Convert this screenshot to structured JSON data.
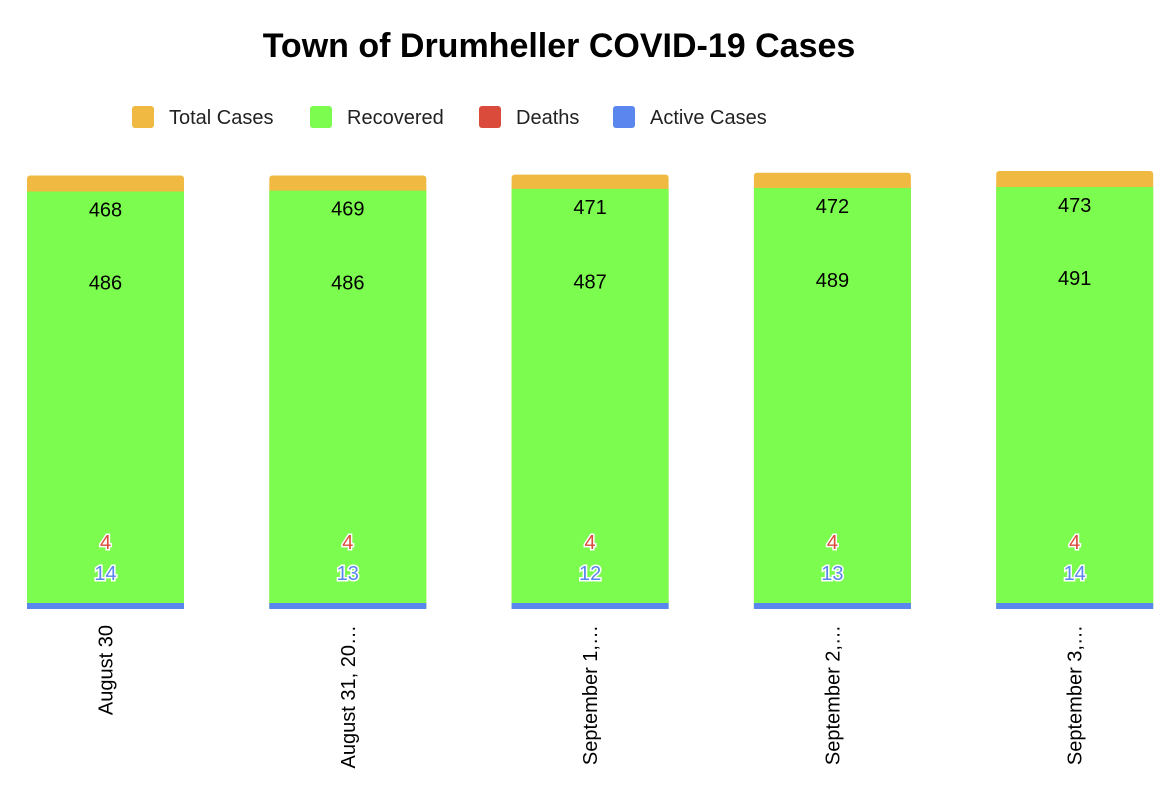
{
  "chart_data": {
    "type": "bar",
    "title": "Town of Drumheller COVID-19 Cases",
    "categories": [
      "August 30",
      "August 31, 20…",
      "September 1,…",
      "September 2,…",
      "September 3,…"
    ],
    "series": [
      {
        "name": "Total Cases",
        "color": "#F0B942",
        "values": [
          486,
          486,
          487,
          489,
          491
        ]
      },
      {
        "name": "Recovered",
        "color": "#7CFC4F",
        "values": [
          468,
          469,
          471,
          472,
          473
        ]
      },
      {
        "name": "Deaths",
        "color": "#DB4B3C",
        "values": [
          4,
          4,
          4,
          4,
          4
        ]
      },
      {
        "name": "Active Cases",
        "color": "#5B86EE",
        "values": [
          14,
          13,
          12,
          13,
          14
        ]
      }
    ],
    "ylim": [
      0,
      491
    ],
    "legend_position": "top",
    "grid": false
  }
}
